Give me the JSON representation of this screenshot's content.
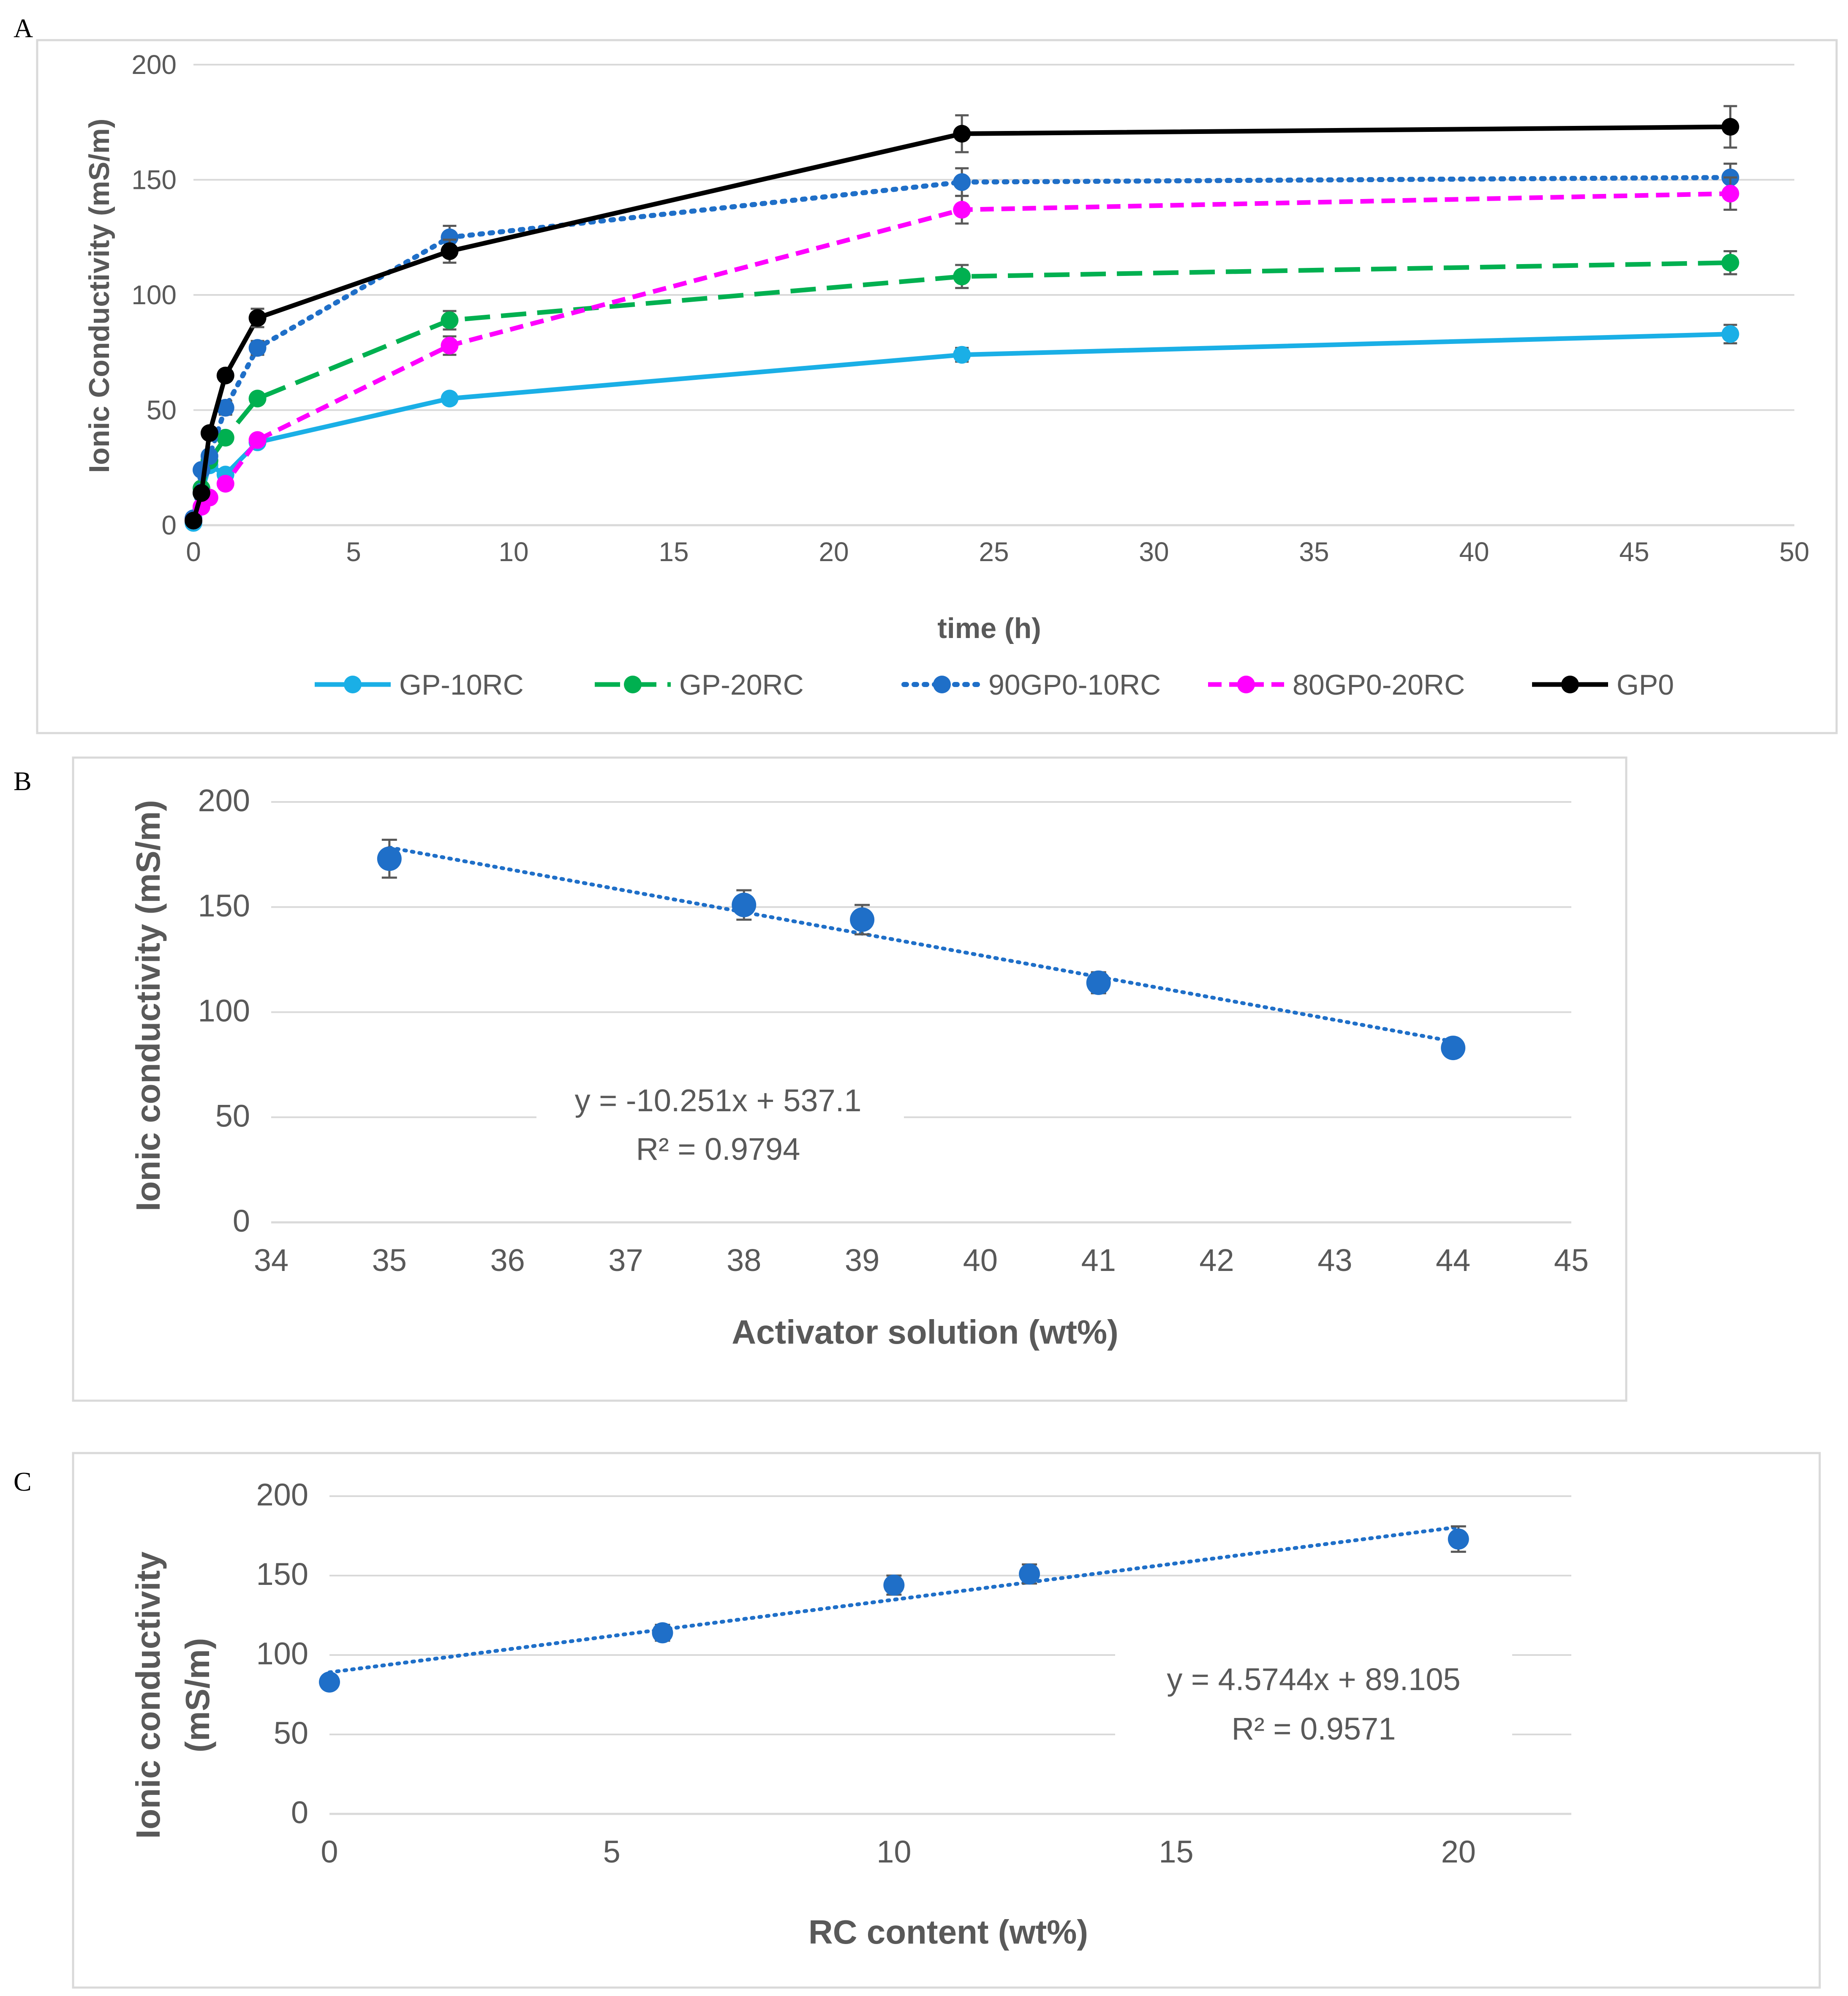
{
  "panels": {
    "a_letter": "A",
    "b_letter": "B",
    "c_letter": "C"
  },
  "chart_data": [
    {
      "id": "A",
      "type": "line",
      "title": "",
      "xlabel": "time (h)",
      "ylabel": "Ionic Conductivity (mS/m)",
      "xlim": [
        0,
        50
      ],
      "ylim": [
        0,
        200
      ],
      "xticks": [
        0,
        5,
        10,
        15,
        20,
        25,
        30,
        35,
        40,
        45,
        50
      ],
      "yticks": [
        0,
        50,
        100,
        150,
        200
      ],
      "grid": "horizontal",
      "legend": "bottom",
      "series": [
        {
          "name": "GP-10RC",
          "color": "#1AAFE6",
          "dash": "solid",
          "x": [
            0,
            0.25,
            0.5,
            1,
            2,
            8,
            24,
            48
          ],
          "y": [
            1,
            14,
            26,
            22,
            36,
            55,
            74,
            83
          ],
          "err": [
            1,
            1,
            1,
            2,
            2,
            2,
            3,
            4
          ]
        },
        {
          "name": "GP-20RC",
          "color": "#00B050",
          "dash": "longdash",
          "x": [
            0,
            0.25,
            0.5,
            1,
            2,
            8,
            24,
            48
          ],
          "y": [
            2,
            16,
            28,
            38,
            55,
            89,
            108,
            114
          ],
          "err": [
            1,
            1,
            2,
            2,
            2,
            4,
            5,
            5
          ]
        },
        {
          "name": "90GP0-10RC",
          "color": "#1F6FC8",
          "dash": "dot",
          "x": [
            0,
            0.25,
            0.5,
            1,
            2,
            8,
            24,
            48
          ],
          "y": [
            3,
            24,
            30,
            51,
            77,
            125,
            149,
            151
          ],
          "err": [
            1,
            1,
            2,
            3,
            3,
            5,
            6,
            6
          ]
        },
        {
          "name": "80GP0-20RC",
          "color": "#FF00FF",
          "dash": "dash",
          "x": [
            0,
            0.25,
            0.5,
            1,
            2,
            8,
            24,
            48
          ],
          "y": [
            2,
            8,
            12,
            18,
            37,
            78,
            137,
            144
          ],
          "err": [
            1,
            1,
            1,
            2,
            2,
            4,
            6,
            7
          ]
        },
        {
          "name": "GP0",
          "color": "#000000",
          "dash": "solid",
          "x": [
            0,
            0.25,
            0.5,
            1,
            2,
            8,
            24,
            48
          ],
          "y": [
            2,
            14,
            40,
            65,
            90,
            119,
            170,
            173
          ],
          "err": [
            1,
            1,
            2,
            2,
            4,
            5,
            8,
            9
          ]
        }
      ]
    },
    {
      "id": "B",
      "type": "scatter",
      "title": "",
      "xlabel": "Activator solution (wt%)",
      "ylabel": "Ionic conductivity (mS/m)",
      "xlim": [
        34,
        45
      ],
      "ylim": [
        0,
        200
      ],
      "xticks": [
        34,
        35,
        36,
        37,
        38,
        39,
        40,
        41,
        42,
        43,
        44,
        45
      ],
      "yticks": [
        0,
        50,
        100,
        150,
        200
      ],
      "grid": "horizontal",
      "color": "#1F6FC8",
      "x": [
        35,
        38,
        39,
        41,
        44
      ],
      "y": [
        173,
        151,
        144,
        114,
        83
      ],
      "err": [
        9,
        7,
        7,
        5,
        2
      ],
      "trendline": {
        "slope": -10.251,
        "intercept": 537.1,
        "x_range": [
          35,
          44
        ]
      },
      "equation": "y = -10.251x + 537.1",
      "r2": "R² = 0.9794"
    },
    {
      "id": "C",
      "type": "scatter",
      "title": "",
      "xlabel": "RC content (wt%)",
      "ylabel_line1": "Ionic conductivity",
      "ylabel_line2": "(mS/m)",
      "xlim": [
        0,
        22
      ],
      "ylim": [
        0,
        200
      ],
      "xticks": [
        0,
        5,
        10,
        15,
        20
      ],
      "yticks": [
        0,
        50,
        100,
        150,
        200
      ],
      "grid": "horizontal",
      "color": "#1F6FC8",
      "x": [
        0,
        5.9,
        10,
        12.4,
        20
      ],
      "y": [
        83,
        114,
        144,
        151,
        173
      ],
      "err": [
        2,
        5,
        6,
        6,
        8
      ],
      "trendline": {
        "slope": 4.5744,
        "intercept": 89.105,
        "x_range": [
          0,
          20
        ]
      },
      "equation": "y = 4.5744x + 89.105",
      "r2": "R² = 0.9571"
    }
  ]
}
